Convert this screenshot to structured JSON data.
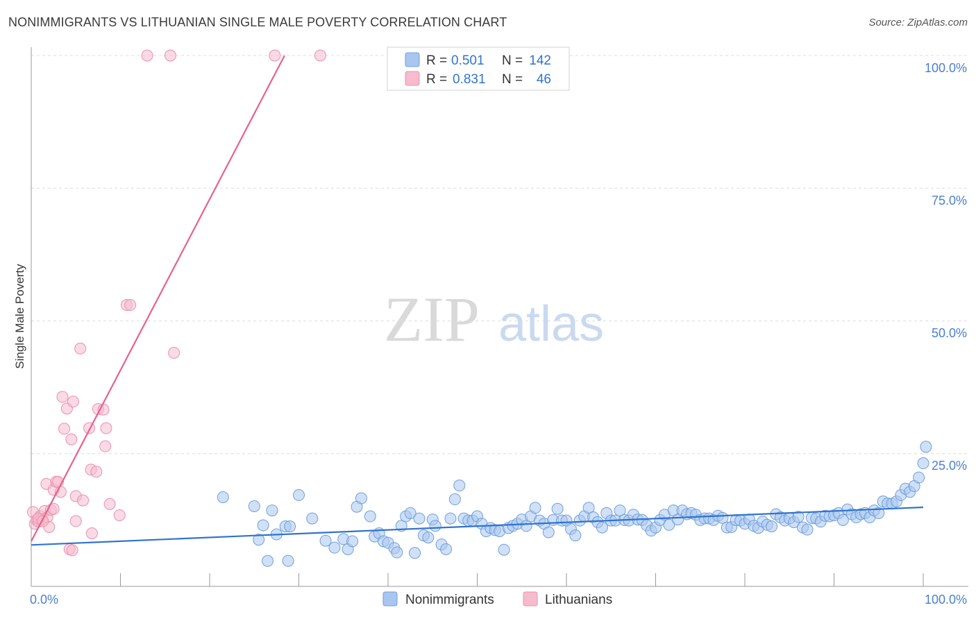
{
  "title": "NONIMMIGRANTS VS LITHUANIAN SINGLE MALE POVERTY CORRELATION CHART",
  "source": "Source: ZipAtlas.com",
  "watermark": {
    "zip": "ZIP",
    "atlas": "atlas"
  },
  "legend_box": {
    "rows": [
      {
        "r_label": "R =",
        "r_value": "0.501",
        "n_label": "N =",
        "n_value": "142"
      },
      {
        "r_label": "R =",
        "r_value": "0.831",
        "n_label": "N =",
        "n_value": "46"
      }
    ]
  },
  "colors": {
    "blue_fill": "#a9c6ef",
    "blue_stroke": "#6f9fde",
    "blue_line": "#2f73d0",
    "pink_fill": "#f6bccd",
    "pink_stroke": "#ec8fab",
    "pink_line": "#e8608a",
    "axis_text": "#4a7fd0",
    "grid": "#dcdcdc"
  },
  "chart_data": {
    "type": "scatter",
    "title": "NONIMMIGRANTS VS LITHUANIAN SINGLE MALE POVERTY CORRELATION CHART",
    "xlabel": "",
    "ylabel": "Single Male Poverty",
    "xlim": [
      0,
      100
    ],
    "ylim": [
      0,
      100
    ],
    "x_tick_labels": [
      "0.0%",
      "100.0%"
    ],
    "y_tick_labels": [
      "100.0%",
      "75.0%",
      "50.0%",
      "25.0%"
    ],
    "y_ticks": [
      100,
      75,
      50,
      25
    ],
    "legend": [
      "Nonimmigrants",
      "Lithuanians"
    ],
    "series": [
      {
        "name": "Nonimmigrants",
        "color": "#a9c6ef",
        "trend": {
          "x": [
            0,
            100
          ],
          "y": [
            7.8,
            14.9
          ]
        },
        "points": [
          [
            21.5,
            16.8
          ],
          [
            25,
            15.1
          ],
          [
            25.5,
            8.8
          ],
          [
            26,
            11.5
          ],
          [
            26.5,
            4.8
          ],
          [
            27,
            14.3
          ],
          [
            27.5,
            9.8
          ],
          [
            28.5,
            11.3
          ],
          [
            28.8,
            4.8
          ],
          [
            29,
            11.3
          ],
          [
            30,
            17.2
          ],
          [
            31.5,
            12.8
          ],
          [
            33,
            8.6
          ],
          [
            34,
            7.3
          ],
          [
            35,
            8.9
          ],
          [
            35.5,
            7
          ],
          [
            36,
            8.5
          ],
          [
            36.5,
            15
          ],
          [
            37,
            16.6
          ],
          [
            38,
            13.2
          ],
          [
            38.5,
            9.4
          ],
          [
            39,
            10
          ],
          [
            39.5,
            8.5
          ],
          [
            40,
            8.2
          ],
          [
            40.7,
            7.2
          ],
          [
            41,
            6.4
          ],
          [
            41.5,
            11.4
          ],
          [
            42,
            13.2
          ],
          [
            42.5,
            13.8
          ],
          [
            43,
            6.3
          ],
          [
            43.5,
            12.8
          ],
          [
            44,
            9.6
          ],
          [
            44.5,
            9.2
          ],
          [
            45,
            12.6
          ],
          [
            45.3,
            11.4
          ],
          [
            46,
            7.9
          ],
          [
            46.5,
            7
          ],
          [
            47,
            12.8
          ],
          [
            47.5,
            16.4
          ],
          [
            48,
            19
          ],
          [
            48.5,
            12.8
          ],
          [
            49,
            12.4
          ],
          [
            49.5,
            12.4
          ],
          [
            50,
            13.2
          ],
          [
            50.5,
            11.8
          ],
          [
            51,
            10.4
          ],
          [
            51.5,
            11
          ],
          [
            52,
            10.6
          ],
          [
            52.5,
            10.4
          ],
          [
            53,
            6.9
          ],
          [
            53.5,
            11
          ],
          [
            54,
            11.4
          ],
          [
            54.5,
            11.8
          ],
          [
            55,
            12.6
          ],
          [
            55.5,
            11.4
          ],
          [
            56,
            13.2
          ],
          [
            56.5,
            14.8
          ],
          [
            57,
            12.4
          ],
          [
            57.5,
            11.8
          ],
          [
            58,
            10.2
          ],
          [
            58.5,
            12.5
          ],
          [
            59,
            14.6
          ],
          [
            59.5,
            12.4
          ],
          [
            60,
            12.4
          ],
          [
            60.5,
            10.8
          ],
          [
            61,
            9.6
          ],
          [
            61.5,
            12.4
          ],
          [
            62,
            13.2
          ],
          [
            62.5,
            14.8
          ],
          [
            63,
            13
          ],
          [
            63.5,
            12.1
          ],
          [
            64,
            11.1
          ],
          [
            64.5,
            13.8
          ],
          [
            65,
            12.4
          ],
          [
            65.5,
            12.4
          ],
          [
            66,
            14.3
          ],
          [
            66.5,
            12.5
          ],
          [
            67,
            12.4
          ],
          [
            67.5,
            13.5
          ],
          [
            68,
            12.6
          ],
          [
            68.5,
            12.5
          ],
          [
            69,
            11.5
          ],
          [
            69.5,
            10.5
          ],
          [
            70,
            11.1
          ],
          [
            70.5,
            12.5
          ],
          [
            71,
            13.5
          ],
          [
            71.5,
            11.6
          ],
          [
            72,
            14.3
          ],
          [
            72.5,
            12.6
          ],
          [
            73,
            14.3
          ],
          [
            73.5,
            13.6
          ],
          [
            74,
            13.8
          ],
          [
            74.5,
            13.5
          ],
          [
            75,
            12.5
          ],
          [
            75.5,
            12.8
          ],
          [
            76,
            12.8
          ],
          [
            76.5,
            12.5
          ],
          [
            77,
            13.3
          ],
          [
            77.5,
            12.9
          ],
          [
            78,
            11.1
          ],
          [
            78.5,
            11.2
          ],
          [
            79,
            12.5
          ],
          [
            79.5,
            12.4
          ],
          [
            80,
            11.8
          ],
          [
            80.5,
            12.6
          ],
          [
            81,
            11.4
          ],
          [
            81.5,
            11
          ],
          [
            82,
            12.2
          ],
          [
            82.5,
            11.6
          ],
          [
            83,
            11.3
          ],
          [
            83.5,
            13.6
          ],
          [
            84,
            13
          ],
          [
            84.5,
            12.4
          ],
          [
            85,
            12.8
          ],
          [
            85.5,
            12.1
          ],
          [
            86,
            13.1
          ],
          [
            86.5,
            11.1
          ],
          [
            87,
            10.7
          ],
          [
            87.5,
            12.9
          ],
          [
            88,
            12.8
          ],
          [
            88.5,
            12.2
          ],
          [
            89,
            13.3
          ],
          [
            89.5,
            13.2
          ],
          [
            90,
            13.4
          ],
          [
            90.5,
            13.8
          ],
          [
            91,
            12.5
          ],
          [
            91.5,
            14.5
          ],
          [
            92,
            13.6
          ],
          [
            92.5,
            13
          ],
          [
            93,
            13.6
          ],
          [
            93.5,
            13.8
          ],
          [
            94,
            13
          ],
          [
            94.5,
            14.3
          ],
          [
            95,
            13.8
          ],
          [
            95.5,
            16
          ],
          [
            96,
            15.6
          ],
          [
            96.5,
            15.6
          ],
          [
            97,
            16
          ],
          [
            97.5,
            17.2
          ],
          [
            98,
            18.4
          ],
          [
            98.5,
            17.8
          ],
          [
            99,
            18.9
          ],
          [
            99.5,
            20.5
          ],
          [
            100,
            23.2
          ],
          [
            100.3,
            26.3
          ]
        ]
      },
      {
        "name": "Lithuanians",
        "color": "#f6bccd",
        "trend": {
          "x": [
            0,
            28.4
          ],
          "y": [
            8.5,
            100
          ]
        },
        "points": [
          [
            0.2,
            14
          ],
          [
            0.4,
            11.8
          ],
          [
            0.6,
            12.5
          ],
          [
            0.8,
            12.2
          ],
          [
            1,
            13.2
          ],
          [
            1.2,
            12.6
          ],
          [
            1.5,
            14.2
          ],
          [
            1.8,
            13
          ],
          [
            2,
            11.2
          ],
          [
            1.7,
            19.3
          ],
          [
            2.2,
            14.4
          ],
          [
            2.5,
            14.6
          ],
          [
            2.5,
            18.2
          ],
          [
            2.8,
            19.7
          ],
          [
            3,
            19.7
          ],
          [
            3.3,
            17.8
          ],
          [
            3.5,
            35.7
          ],
          [
            3.7,
            29.7
          ],
          [
            4,
            33.5
          ],
          [
            4.3,
            7
          ],
          [
            4.6,
            6.8
          ],
          [
            4.5,
            27.7
          ],
          [
            4.7,
            34.8
          ],
          [
            5,
            12.3
          ],
          [
            5,
            17
          ],
          [
            5.5,
            44.8
          ],
          [
            5.8,
            16.2
          ],
          [
            6.5,
            29.8
          ],
          [
            6.7,
            22
          ],
          [
            6.8,
            10
          ],
          [
            7.3,
            21.6
          ],
          [
            7.5,
            33.4
          ],
          [
            8.1,
            33.3
          ],
          [
            8.3,
            26.4
          ],
          [
            8.4,
            29.8
          ],
          [
            8.8,
            15.5
          ],
          [
            9.9,
            13.4
          ],
          [
            10.7,
            53
          ],
          [
            11.1,
            53
          ],
          [
            13,
            100
          ],
          [
            15.6,
            100
          ],
          [
            16,
            44
          ],
          [
            27.3,
            100
          ],
          [
            32.4,
            100
          ],
          [
            0.8,
            12.8
          ],
          [
            1.3,
            12.3
          ]
        ]
      }
    ]
  }
}
